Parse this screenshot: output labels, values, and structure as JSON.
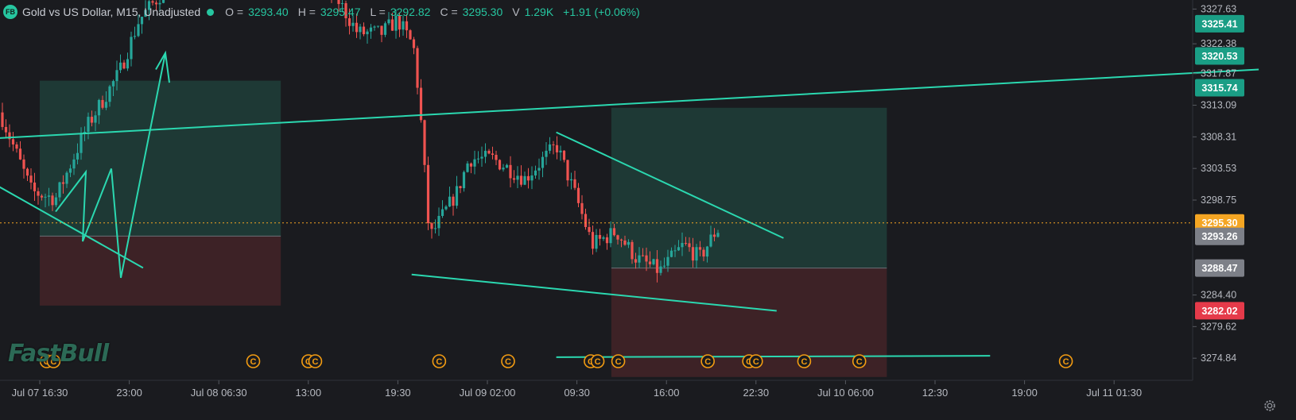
{
  "legend": {
    "badge": "FB",
    "symbol": "Gold vs US Dollar, M15, Unadjusted",
    "o_label": "O =",
    "o_value": "3293.40",
    "h_label": "H =",
    "h_value": "3295.47",
    "l_label": "L =",
    "l_value": "3292.82",
    "c_label": "C =",
    "c_value": "3295.30",
    "v_label": "V",
    "v_value": "1.29K",
    "change": "+1.91 (+0.06%)"
  },
  "logo": "FastBull",
  "colors": {
    "background": "#1a1b1f",
    "up": "#26a69a",
    "down": "#ef5350",
    "drawing": "#2bd8b0",
    "profit_zone": "#1f3b37",
    "loss_zone": "#3f2327",
    "current_price": "#f5a623",
    "event_marker": "#f39c12"
  },
  "chart_data": {
    "type": "candlestick",
    "timeframe": "M15",
    "x_ticks": [
      "Jul 07 16:30",
      "23:00",
      "Jul 08 06:30",
      "13:00",
      "19:30",
      "Jul 09 02:00",
      "09:30",
      "16:00",
      "22:30",
      "Jul 10 06:00",
      "12:30",
      "19:00",
      "Jul 11 01:30"
    ],
    "y_ticks": [
      "3327.63",
      "3322.38",
      "3317.87",
      "3313.09",
      "3308.31",
      "3303.53",
      "3298.75",
      "3284.40",
      "3279.62",
      "3274.84"
    ],
    "ylim": [
      3271.5,
      3329.0
    ],
    "price_labels": [
      {
        "value": "3325.41",
        "color": "#1a9e85"
      },
      {
        "value": "3320.53",
        "color": "#1a9e85"
      },
      {
        "value": "3315.74",
        "color": "#1a9e85"
      },
      {
        "value": "3295.30",
        "color": "#f5a623"
      },
      {
        "value": "3293.26",
        "color": "#7d8088"
      },
      {
        "value": "3288.47",
        "color": "#7d8088"
      },
      {
        "value": "3282.02",
        "color": "#e53a4a"
      }
    ],
    "current_price": 3295.3,
    "ohlc_last": {
      "open": 3293.4,
      "high": 3295.47,
      "low": 3292.82,
      "close": 3295.3,
      "volume": "1.29K"
    },
    "position_tools": [
      {
        "start": "Jul 07 16:30",
        "end": "Jul 08 10:00",
        "entry": 3293.3,
        "target": 3316.8,
        "stop": 3282.8
      },
      {
        "start": "Jul 09 10:00",
        "end": "Jul 10 06:00",
        "entry": 3288.47,
        "target": 3312.7,
        "stop": 3272.0
      }
    ],
    "trend_lines": [
      {
        "from": [
          "Jul 07 12:30",
          3308.0
        ],
        "to": [
          "Jul 11 09:00",
          3318.5
        ]
      },
      {
        "from": [
          "Jul 07 12:30",
          3302.0
        ],
        "to": [
          "Jul 08 00:00",
          3288.5
        ]
      },
      {
        "from": [
          "Jul 08 19:30",
          3287.5
        ],
        "to": [
          "Jul 09 22:00",
          3282.0
        ]
      },
      {
        "from": [
          "Jul 09 06:00",
          3309.0
        ],
        "to": [
          "Jul 09 22:30",
          3293.0
        ]
      },
      {
        "from": [
          "Jul 09 06:00",
          3275.0
        ],
        "to": [
          "Jul 10 13:30",
          3275.2
        ]
      }
    ],
    "event_markers": [
      "Jul 07 17:00",
      "Jul 07 17:30",
      "Jul 08 08:00",
      "Jul 08 12:00",
      "Jul 08 12:30",
      "Jul 08 21:30",
      "Jul 09 02:30",
      "Jul 09 08:30",
      "Jul 09 09:00",
      "Jul 09 10:30",
      "Jul 09 17:00",
      "Jul 09 20:00",
      "Jul 09 20:30",
      "Jul 10 00:00",
      "Jul 10 04:00",
      "Jul 10 19:00"
    ]
  }
}
